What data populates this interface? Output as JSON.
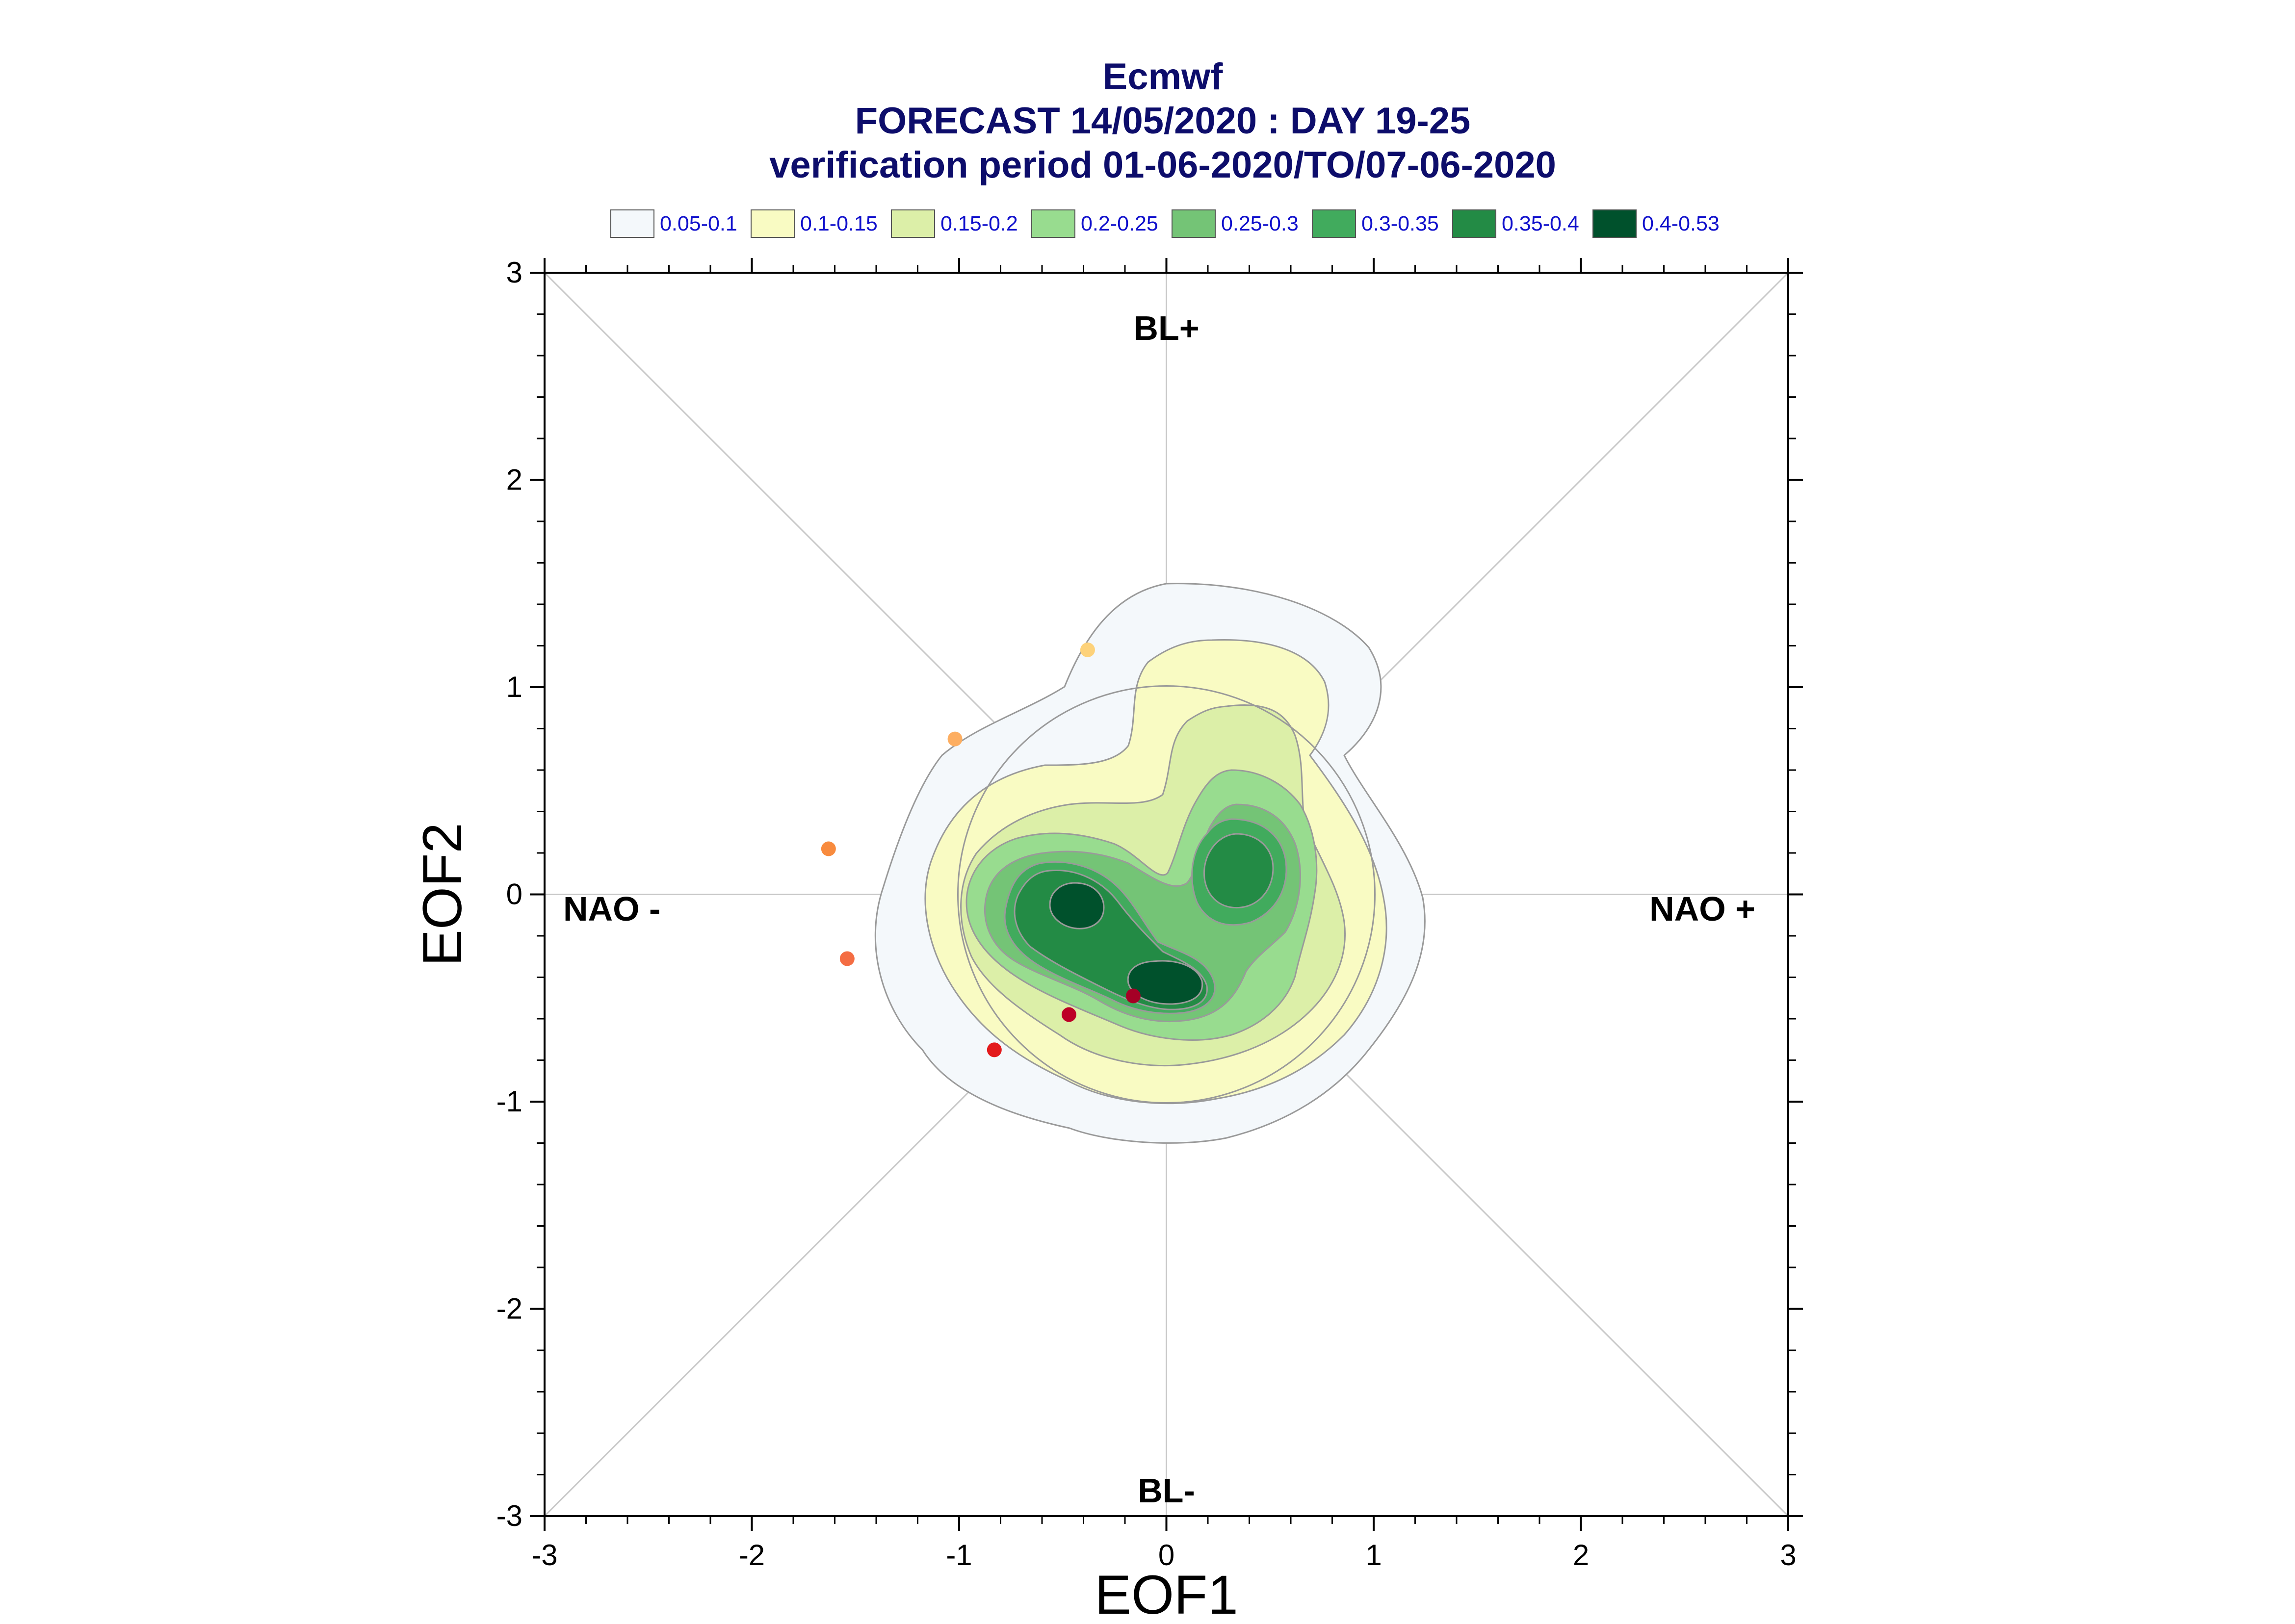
{
  "title": {
    "line1": "Ecmwf",
    "line2": "FORECAST 14/05/2020 : DAY 19-25",
    "line3": "verification period 01-06-2020/TO/07-06-2020"
  },
  "legend": [
    {
      "label": "0.05-0.1",
      "color": "#f4f8fb"
    },
    {
      "label": "0.1-0.15",
      "color": "#f9fbc3"
    },
    {
      "label": "0.15-0.2",
      "color": "#dcefa8"
    },
    {
      "label": "0.2-0.25",
      "color": "#98dc8f"
    },
    {
      "label": "0.25-0.3",
      "color": "#74c476"
    },
    {
      "label": "0.3-0.35",
      "color": "#41ab5d"
    },
    {
      "label": "0.35-0.4",
      "color": "#238b45"
    },
    {
      "label": "0.4-0.53",
      "color": "#00512c"
    }
  ],
  "regimes": {
    "top": "BL+",
    "bottom": "BL-",
    "left": "NAO -",
    "right": "NAO +"
  },
  "chart_data": {
    "type": "scatter",
    "xlabel": "EOF1",
    "ylabel": "EOF2",
    "xlim": [
      -3,
      3
    ],
    "ylim": [
      -3,
      3
    ],
    "xticks": [
      "-3",
      "-2",
      "-1",
      "0",
      "1",
      "2",
      "3"
    ],
    "yticks": [
      "-3",
      "-2",
      "-1",
      "0",
      "1",
      "2",
      "3"
    ],
    "points": [
      {
        "x": -0.38,
        "y": 1.18,
        "color": "#fdd27a"
      },
      {
        "x": -1.02,
        "y": 0.75,
        "color": "#fdae61"
      },
      {
        "x": -1.63,
        "y": 0.22,
        "color": "#f88b3e"
      },
      {
        "x": -1.54,
        "y": -0.31,
        "color": "#f46d43"
      },
      {
        "x": -0.83,
        "y": -0.75,
        "color": "#e31a1c"
      },
      {
        "x": -0.47,
        "y": -0.58,
        "color": "#bd0026"
      },
      {
        "x": -0.16,
        "y": -0.49,
        "color": "#a50026"
      }
    ],
    "density_levels": [
      "0.05-0.1",
      "0.1-0.15",
      "0.15-0.2",
      "0.2-0.25",
      "0.25-0.3",
      "0.3-0.35",
      "0.35-0.4",
      "0.4-0.53"
    ],
    "grid": false,
    "legend_position": "top"
  }
}
